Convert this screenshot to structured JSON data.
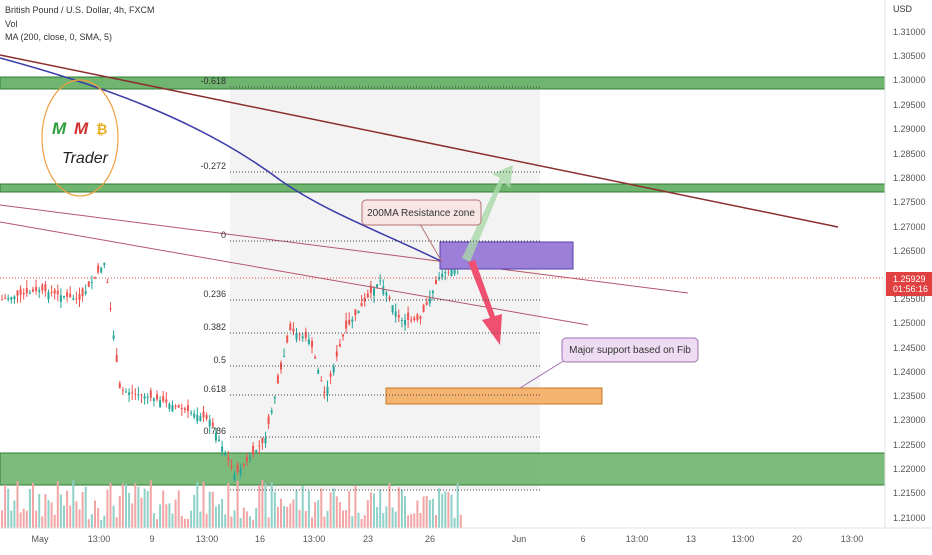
{
  "header": {
    "title": "British Pound / U.S. Dollar, 4h, FXCM",
    "volume": "Vol",
    "indicator": "MA (200, close, 0, SMA, 5)"
  },
  "price_axis": {
    "currency": "USD",
    "ticks": [
      "1.31000",
      "1.30500",
      "1.30000",
      "1.29500",
      "1.29000",
      "1.28500",
      "1.28000",
      "1.27500",
      "1.27000",
      "1.26500",
      "1.25500",
      "1.25000",
      "1.24500",
      "1.24000",
      "1.23500",
      "1.23000",
      "1.22500",
      "1.22000",
      "1.21500",
      "1.21000"
    ],
    "current_price": "1.25929",
    "countdown": "01:56:16"
  },
  "time_axis": [
    "May",
    "13:00",
    "9",
    "13:00",
    "16",
    "13:00",
    "23",
    "26",
    "Jun",
    "6",
    "13:00",
    "13",
    "13:00",
    "20",
    "13:00"
  ],
  "fib_levels": [
    "-0.618",
    "-0.272",
    "0",
    "0.236",
    "0.382",
    "0.5",
    "0.618",
    "0.786"
  ],
  "annotations": {
    "resistance": "200MA Resistance zone",
    "support": "Major support based on Fib"
  },
  "logo": {
    "letter1": "M",
    "letter2": "M",
    "coin": "₿",
    "word": "Trader"
  }
}
